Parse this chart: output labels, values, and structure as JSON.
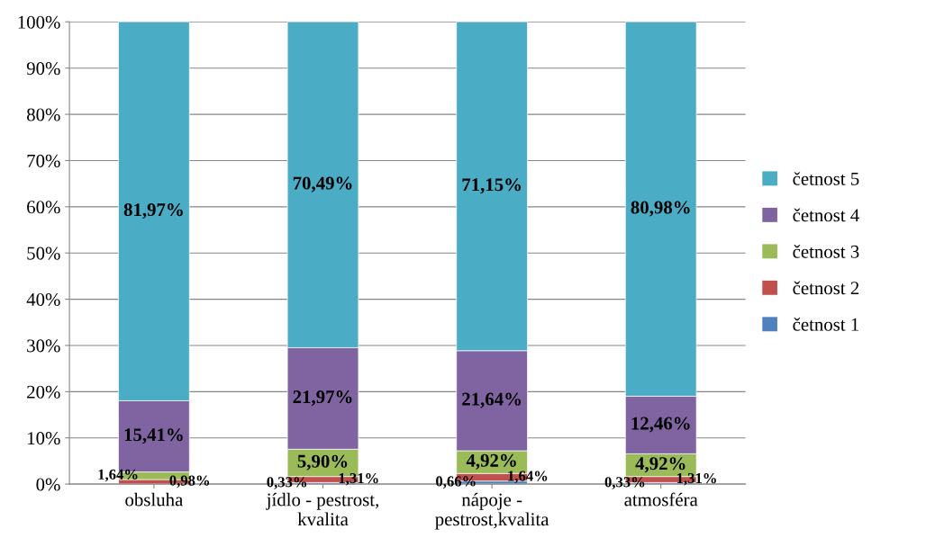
{
  "chart_data": {
    "type": "bar",
    "stacked": true,
    "categories": [
      "obsluha",
      "jídlo - pestrost,\nkvalita",
      "nápoje -\npestrost,kvalita",
      "atmosféra"
    ],
    "series": [
      {
        "name": "četnost 1",
        "color": "#4f81bd",
        "values": [
          0,
          0.33,
          0.66,
          0.33
        ],
        "value_labels": [
          null,
          "0,33%",
          "0,66%",
          "0,33%"
        ]
      },
      {
        "name": "četnost 2",
        "color": "#c0504d",
        "values": [
          0.98,
          1.31,
          1.64,
          1.31
        ],
        "value_labels": [
          "0,98%",
          "1,31%",
          "1,64%",
          "1,31%"
        ]
      },
      {
        "name": "četnost 3",
        "color": "#9bbb59",
        "values": [
          1.64,
          5.9,
          4.92,
          4.92
        ],
        "value_labels": [
          "1,64%",
          "5,90%",
          "4,92%",
          "4,92%"
        ]
      },
      {
        "name": "četnost 4",
        "color": "#8064a2",
        "values": [
          15.41,
          21.97,
          21.64,
          12.46
        ],
        "value_labels": [
          "15,41%",
          "21,97%",
          "21,64%",
          "12,46%"
        ]
      },
      {
        "name": "četnost 5",
        "color": "#4bacc6",
        "values": [
          81.97,
          70.49,
          71.15,
          80.98
        ],
        "value_labels": [
          "81,97%",
          "70,49%",
          "71,15%",
          "80,98%"
        ]
      }
    ],
    "ylim": [
      0,
      100
    ],
    "yticks": [
      {
        "value": 0,
        "label": "0%"
      },
      {
        "value": 10,
        "label": "10%"
      },
      {
        "value": 20,
        "label": "20%"
      },
      {
        "value": 30,
        "label": "30%"
      },
      {
        "value": 40,
        "label": "40%"
      },
      {
        "value": 50,
        "label": "50%"
      },
      {
        "value": 60,
        "label": "60%"
      },
      {
        "value": 70,
        "label": "70%"
      },
      {
        "value": 80,
        "label": "80%"
      },
      {
        "value": 90,
        "label": "90%"
      },
      {
        "value": 100,
        "label": "100%"
      }
    ],
    "grid": "y",
    "legend": "right"
  }
}
